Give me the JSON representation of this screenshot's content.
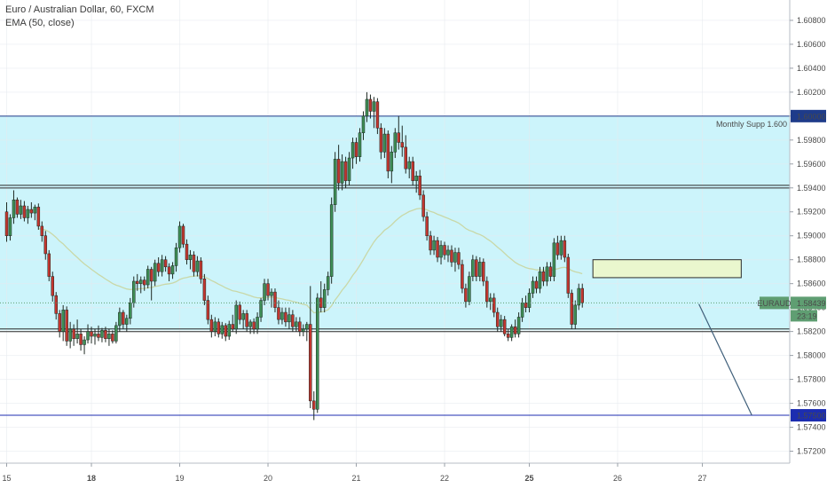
{
  "header": {
    "symbol_title": "Euro / Australian Dollar, 60, FXCM",
    "indicator": "EMA (50, close)"
  },
  "colors": {
    "up": "#3e8e55",
    "down": "#c2362f",
    "range_fill": "#ccf4fb",
    "zone_fill": "#eef7c6",
    "ema": "#c9d8a8",
    "trend_line": "#3f5f7a",
    "target_line": "#1c2db0",
    "price_tag": "#5f9e72"
  },
  "chart_data": {
    "type": "candlestick",
    "symbol": "EURAUD",
    "timeframe": "60",
    "y_axis": {
      "ylim": [
        1.571,
        1.6097
      ],
      "ticks": [
        "1.60800",
        "1.60600",
        "1.60400",
        "1.60200",
        "1.60000",
        "1.59800",
        "1.59600",
        "1.59400",
        "1.59200",
        "1.59000",
        "1.58800",
        "1.58600",
        "1.58400",
        "1.58200",
        "1.58000",
        "1.57800",
        "1.57600",
        "1.57400",
        "1.57200"
      ]
    },
    "x_axis": {
      "labels": [
        {
          "text": "15",
          "bold": false
        },
        {
          "text": "18",
          "bold": true
        },
        {
          "text": "19",
          "bold": false
        },
        {
          "text": "20",
          "bold": false
        },
        {
          "text": "21",
          "bold": false
        },
        {
          "text": "22",
          "bold": false
        },
        {
          "text": "25",
          "bold": true
        },
        {
          "text": "26",
          "bold": false
        },
        {
          "text": "27",
          "bold": false
        }
      ],
      "label_slot": [
        0,
        24,
        49,
        74,
        99,
        124,
        148,
        173,
        197
      ]
    },
    "horizontal_levels": [
      {
        "price": 1.6,
        "label": "Monthly Supp 1.600",
        "tag": "1.60000",
        "tag_color": "#1e3b8a"
      },
      {
        "price": 1.5941,
        "double": true
      },
      {
        "price": 1.5821,
        "double": true
      },
      {
        "price": 1.575,
        "tag": "1.57500",
        "tag_color": "#1c2db0"
      }
    ],
    "range_box": {
      "top": 1.6,
      "bottom": 1.5821
    },
    "supply_zone": {
      "top": 1.588,
      "bottom": 1.5865,
      "start_slot": 166,
      "end_slot": 208
    },
    "current_price": {
      "symbol_tag": "EURAUD",
      "value": "1.58439",
      "countdown": "23:19"
    },
    "projection": {
      "start_slot": 196,
      "start_price": 1.5843,
      "end_slot": 211,
      "end_price": 1.575
    },
    "candles": [
      [
        1.592,
        1.5928,
        1.5895,
        1.59
      ],
      [
        1.59,
        1.5918,
        1.5896,
        1.5915
      ],
      [
        1.5915,
        1.5938,
        1.591,
        1.593
      ],
      [
        1.593,
        1.5932,
        1.5915,
        1.5918
      ],
      [
        1.5918,
        1.593,
        1.5914,
        1.5925
      ],
      [
        1.5925,
        1.5929,
        1.5912,
        1.5915
      ],
      [
        1.5915,
        1.5925,
        1.591,
        1.5922
      ],
      [
        1.5922,
        1.5928,
        1.5915,
        1.5919
      ],
      [
        1.5919,
        1.5926,
        1.5913,
        1.5924
      ],
      [
        1.5924,
        1.5927,
        1.5905,
        1.5908
      ],
      [
        1.5908,
        1.5912,
        1.5895,
        1.59
      ],
      [
        1.59,
        1.5904,
        1.588,
        1.5885
      ],
      [
        1.5885,
        1.5888,
        1.5862,
        1.5866
      ],
      [
        1.5866,
        1.587,
        1.5845,
        1.585
      ],
      [
        1.585,
        1.5853,
        1.583,
        1.5835
      ],
      [
        1.5835,
        1.5838,
        1.5815,
        1.582
      ],
      [
        1.582,
        1.5842,
        1.5812,
        1.5838
      ],
      [
        1.5838,
        1.5841,
        1.5808,
        1.5812
      ],
      [
        1.5812,
        1.5828,
        1.5806,
        1.5822
      ],
      [
        1.5822,
        1.5826,
        1.5808,
        1.5814
      ],
      [
        1.5814,
        1.583,
        1.581,
        1.5818
      ],
      [
        1.5818,
        1.5822,
        1.5804,
        1.5809
      ],
      [
        1.5809,
        1.5816,
        1.5801,
        1.5813
      ],
      [
        1.5813,
        1.5826,
        1.581,
        1.582
      ],
      [
        1.582,
        1.5824,
        1.581,
        1.5816
      ],
      [
        1.5816,
        1.5822,
        1.5809,
        1.5818
      ],
      [
        1.5818,
        1.5825,
        1.5812,
        1.5815
      ],
      [
        1.5815,
        1.5823,
        1.5811,
        1.5821
      ],
      [
        1.5821,
        1.5824,
        1.5811,
        1.5814
      ],
      [
        1.5814,
        1.5822,
        1.5808,
        1.5818
      ],
      [
        1.5818,
        1.5821,
        1.581,
        1.5812
      ],
      [
        1.5812,
        1.5828,
        1.581,
        1.5825
      ],
      [
        1.5825,
        1.584,
        1.582,
        1.5836
      ],
      [
        1.5836,
        1.5838,
        1.5822,
        1.5826
      ],
      [
        1.5826,
        1.5834,
        1.582,
        1.5831
      ],
      [
        1.5831,
        1.5848,
        1.5826,
        1.5844
      ],
      [
        1.5844,
        1.5866,
        1.584,
        1.5862
      ],
      [
        1.5862,
        1.5868,
        1.5854,
        1.586
      ],
      [
        1.586,
        1.5866,
        1.5852,
        1.5863
      ],
      [
        1.5863,
        1.5866,
        1.5854,
        1.5859
      ],
      [
        1.5859,
        1.5875,
        1.5856,
        1.5872
      ],
      [
        1.5872,
        1.5874,
        1.5846,
        1.5862
      ],
      [
        1.5862,
        1.588,
        1.5858,
        1.5877
      ],
      [
        1.5877,
        1.5882,
        1.5866,
        1.587
      ],
      [
        1.587,
        1.5884,
        1.5866,
        1.588
      ],
      [
        1.588,
        1.5883,
        1.587,
        1.5874
      ],
      [
        1.5874,
        1.5877,
        1.5862,
        1.5868
      ],
      [
        1.5868,
        1.5878,
        1.5864,
        1.5875
      ],
      [
        1.5875,
        1.5894,
        1.587,
        1.589
      ],
      [
        1.589,
        1.5912,
        1.5886,
        1.5908
      ],
      [
        1.5908,
        1.591,
        1.589,
        1.5893
      ],
      [
        1.5893,
        1.5897,
        1.5876,
        1.588
      ],
      [
        1.588,
        1.5888,
        1.5872,
        1.5884
      ],
      [
        1.5884,
        1.5887,
        1.5866,
        1.587
      ],
      [
        1.587,
        1.5883,
        1.5866,
        1.5879
      ],
      [
        1.5879,
        1.5882,
        1.586,
        1.5864
      ],
      [
        1.5864,
        1.5868,
        1.5842,
        1.5846
      ],
      [
        1.5846,
        1.585,
        1.5826,
        1.583
      ],
      [
        1.583,
        1.5834,
        1.5815,
        1.582
      ],
      [
        1.582,
        1.5832,
        1.5816,
        1.5828
      ],
      [
        1.5828,
        1.5831,
        1.5815,
        1.5818
      ],
      [
        1.5818,
        1.5828,
        1.5814,
        1.5825
      ],
      [
        1.5825,
        1.5827,
        1.5812,
        1.5816
      ],
      [
        1.5816,
        1.5829,
        1.5813,
        1.5826
      ],
      [
        1.5826,
        1.5834,
        1.582,
        1.5822
      ],
      [
        1.5822,
        1.5846,
        1.5818,
        1.5842
      ],
      [
        1.5842,
        1.5845,
        1.5826,
        1.583
      ],
      [
        1.583,
        1.5838,
        1.5822,
        1.5835
      ],
      [
        1.5835,
        1.5838,
        1.582,
        1.5824
      ],
      [
        1.5824,
        1.583,
        1.5818,
        1.5828
      ],
      [
        1.5828,
        1.5831,
        1.5818,
        1.5822
      ],
      [
        1.5822,
        1.5836,
        1.5818,
        1.5832
      ],
      [
        1.5832,
        1.5848,
        1.5828,
        1.5846
      ],
      [
        1.5846,
        1.5864,
        1.5842,
        1.586
      ],
      [
        1.586,
        1.5864,
        1.5846,
        1.585
      ],
      [
        1.585,
        1.5856,
        1.584,
        1.5853
      ],
      [
        1.5853,
        1.5856,
        1.5836,
        1.584
      ],
      [
        1.584,
        1.5846,
        1.5826,
        1.583
      ],
      [
        1.583,
        1.584,
        1.5826,
        1.5836
      ],
      [
        1.5836,
        1.584,
        1.5824,
        1.5828
      ],
      [
        1.5828,
        1.584,
        1.5822,
        1.5834
      ],
      [
        1.5834,
        1.5838,
        1.582,
        1.5824
      ],
      [
        1.5824,
        1.5832,
        1.582,
        1.5828
      ],
      [
        1.5828,
        1.5832,
        1.5816,
        1.582
      ],
      [
        1.582,
        1.5826,
        1.5816,
        1.5822
      ],
      [
        1.5822,
        1.5828,
        1.5812,
        1.5826
      ],
      [
        1.5826,
        1.5858,
        1.5756,
        1.5762
      ],
      [
        1.5762,
        1.577,
        1.5746,
        1.5755
      ],
      [
        1.5755,
        1.5852,
        1.5752,
        1.5848
      ],
      [
        1.5848,
        1.5862,
        1.5836,
        1.584
      ],
      [
        1.584,
        1.586,
        1.5836,
        1.5855
      ],
      [
        1.5855,
        1.587,
        1.585,
        1.5866
      ],
      [
        1.5866,
        1.5932,
        1.586,
        1.5926
      ],
      [
        1.5926,
        1.597,
        1.592,
        1.5964
      ],
      [
        1.5964,
        1.5976,
        1.5938,
        1.5944
      ],
      [
        1.5944,
        1.5968,
        1.5938,
        1.5962
      ],
      [
        1.5962,
        1.5966,
        1.594,
        1.5946
      ],
      [
        1.5946,
        1.597,
        1.5942,
        1.5965
      ],
      [
        1.5965,
        1.5982,
        1.5956,
        1.5978
      ],
      [
        1.5978,
        1.5982,
        1.596,
        1.5966
      ],
      [
        1.5966,
        1.599,
        1.5962,
        1.5986
      ],
      [
        1.5986,
        1.6004,
        1.598,
        1.6
      ],
      [
        1.6,
        1.602,
        1.5995,
        1.6014
      ],
      [
        1.6014,
        1.6018,
        1.5998,
        1.6004
      ],
      [
        1.6004,
        1.6016,
        1.599,
        1.6012
      ],
      [
        1.6012,
        1.6015,
        1.5985,
        1.599
      ],
      [
        1.599,
        1.5994,
        1.5964,
        1.597
      ],
      [
        1.597,
        1.599,
        1.5965,
        1.5985
      ],
      [
        1.5985,
        1.5988,
        1.5948,
        1.5954
      ],
      [
        1.5954,
        1.5975,
        1.5944,
        1.597
      ],
      [
        1.597,
        1.599,
        1.5965,
        1.5986
      ],
      [
        1.5986,
        1.6,
        1.5972,
        1.5978
      ],
      [
        1.5978,
        1.5992,
        1.5966,
        1.5974
      ],
      [
        1.5974,
        1.5984,
        1.5952,
        1.5956
      ],
      [
        1.5956,
        1.5966,
        1.5948,
        1.5962
      ],
      [
        1.5962,
        1.5966,
        1.5942,
        1.5946
      ],
      [
        1.5946,
        1.5954,
        1.5936,
        1.595
      ],
      [
        1.595,
        1.5955,
        1.593,
        1.5934
      ],
      [
        1.5934,
        1.5938,
        1.5912,
        1.5916
      ],
      [
        1.5916,
        1.592,
        1.5896,
        1.59
      ],
      [
        1.59,
        1.5904,
        1.5884,
        1.5888
      ],
      [
        1.5888,
        1.59,
        1.5884,
        1.5896
      ],
      [
        1.5896,
        1.5899,
        1.5878,
        1.5882
      ],
      [
        1.5882,
        1.5896,
        1.5876,
        1.5892
      ],
      [
        1.5892,
        1.5895,
        1.588,
        1.5884
      ],
      [
        1.5884,
        1.5892,
        1.5878,
        1.5888
      ],
      [
        1.5888,
        1.5892,
        1.5874,
        1.5878
      ],
      [
        1.5878,
        1.589,
        1.587,
        1.5886
      ],
      [
        1.5886,
        1.589,
        1.5872,
        1.5876
      ],
      [
        1.5876,
        1.588,
        1.5852,
        1.5856
      ],
      [
        1.5856,
        1.586,
        1.584,
        1.5845
      ],
      [
        1.5845,
        1.587,
        1.5842,
        1.5866
      ],
      [
        1.5866,
        1.5884,
        1.5862,
        1.588
      ],
      [
        1.588,
        1.5883,
        1.5862,
        1.5866
      ],
      [
        1.5866,
        1.5882,
        1.5862,
        1.5878
      ],
      [
        1.5878,
        1.5881,
        1.5858,
        1.5862
      ],
      [
        1.5862,
        1.5866,
        1.584,
        1.5845
      ],
      [
        1.5845,
        1.5852,
        1.5838,
        1.5848
      ],
      [
        1.5848,
        1.5852,
        1.5832,
        1.5836
      ],
      [
        1.5836,
        1.584,
        1.582,
        1.5824
      ],
      [
        1.5824,
        1.5834,
        1.582,
        1.583
      ],
      [
        1.583,
        1.5833,
        1.5816,
        1.5818
      ],
      [
        1.5818,
        1.5822,
        1.5812,
        1.5815
      ],
      [
        1.5815,
        1.5826,
        1.5812,
        1.5824
      ],
      [
        1.5824,
        1.583,
        1.5815,
        1.5818
      ],
      [
        1.5818,
        1.5836,
        1.5815,
        1.5832
      ],
      [
        1.5832,
        1.5848,
        1.5828,
        1.5844
      ],
      [
        1.5844,
        1.585,
        1.5836,
        1.584
      ],
      [
        1.584,
        1.5856,
        1.5836,
        1.5852
      ],
      [
        1.5852,
        1.5866,
        1.5848,
        1.5862
      ],
      [
        1.5862,
        1.5866,
        1.5852,
        1.5856
      ],
      [
        1.5856,
        1.5874,
        1.5852,
        1.587
      ],
      [
        1.587,
        1.5874,
        1.5858,
        1.5862
      ],
      [
        1.5862,
        1.5878,
        1.5858,
        1.5874
      ],
      [
        1.5874,
        1.5878,
        1.5862,
        1.5866
      ],
      [
        1.5866,
        1.5898,
        1.5862,
        1.5894
      ],
      [
        1.5894,
        1.59,
        1.588,
        1.5884
      ],
      [
        1.5884,
        1.59,
        1.588,
        1.5896
      ],
      [
        1.5896,
        1.59,
        1.5878,
        1.5882
      ],
      [
        1.5882,
        1.5885,
        1.5848,
        1.5852
      ],
      [
        1.5852,
        1.5855,
        1.5822,
        1.5826
      ],
      [
        1.5826,
        1.5846,
        1.5822,
        1.5842
      ],
      [
        1.5842,
        1.586,
        1.5838,
        1.5856
      ],
      [
        1.5856,
        1.586,
        1.584,
        1.5844
      ]
    ]
  }
}
